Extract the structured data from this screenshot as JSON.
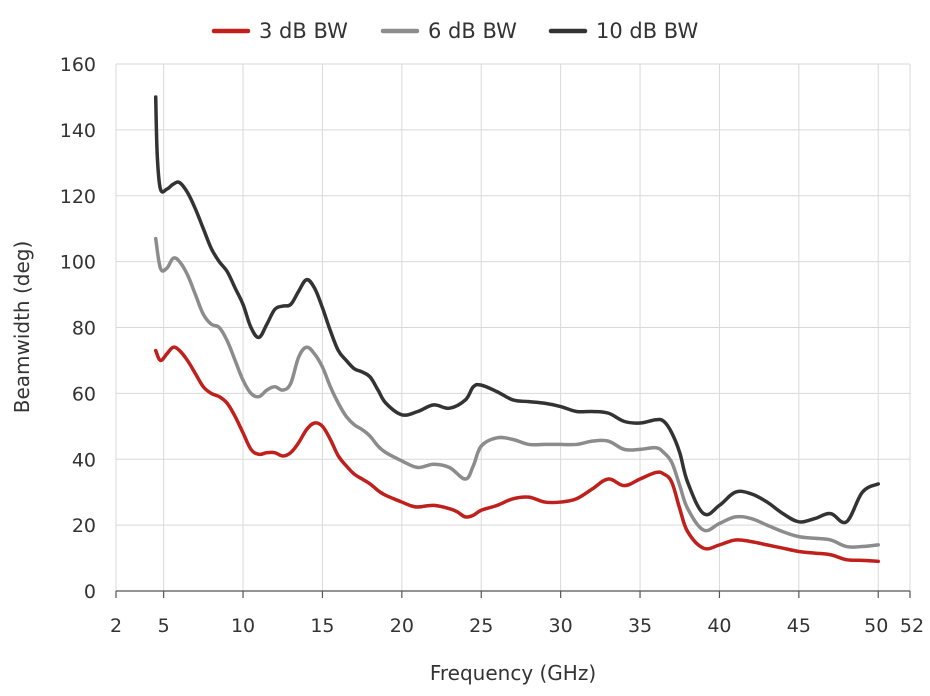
{
  "chart_data": {
    "type": "line",
    "title": "",
    "xlabel": "Frequency (GHz)",
    "ylabel": "Beamwidth (deg)",
    "xlim": [
      2,
      52
    ],
    "ylim": [
      0,
      160
    ],
    "xticks": [
      2,
      5,
      10,
      15,
      20,
      25,
      30,
      35,
      40,
      45,
      50,
      52
    ],
    "yticks": [
      0,
      20,
      40,
      60,
      80,
      100,
      120,
      140,
      160
    ],
    "grid": true,
    "legend_position": "top",
    "series": [
      {
        "name": "3 dB BW",
        "color": "#c0201c",
        "x": [
          4.5,
          4.8,
          5.2,
          5.6,
          6,
          6.5,
          7,
          7.5,
          8,
          8.5,
          9,
          9.5,
          10,
          10.5,
          11,
          11.5,
          12,
          12.5,
          13,
          13.5,
          14,
          14.5,
          15,
          15.5,
          16,
          16.5,
          17,
          17.5,
          18,
          18.5,
          19,
          20,
          20.5,
          21,
          22,
          23,
          23.5,
          24,
          24.5,
          25,
          26,
          27,
          28,
          29,
          30,
          31,
          32,
          33,
          34,
          35,
          36,
          36.5,
          37,
          37.5,
          38,
          39,
          40,
          41,
          42,
          43,
          44,
          45,
          46,
          47,
          48,
          49,
          50
        ],
        "y": [
          73,
          70,
          72,
          74,
          73,
          70,
          66,
          62,
          60,
          59,
          57,
          53,
          48,
          43,
          41.5,
          42,
          42,
          41,
          42,
          45,
          49,
          51,
          50,
          46,
          41,
          38,
          35.5,
          34,
          32.5,
          30.5,
          29,
          27,
          26,
          25.5,
          26,
          25,
          24,
          22.5,
          23,
          24.5,
          26,
          28,
          28.5,
          27,
          27,
          28,
          31,
          34,
          32,
          34,
          36,
          35.5,
          33,
          25,
          18,
          13,
          14,
          15.5,
          15,
          14,
          13,
          12,
          11.5,
          11,
          9.5,
          9.3,
          9
        ]
      },
      {
        "name": "6 dB BW",
        "color": "#8c8c8c",
        "x": [
          4.5,
          4.8,
          5.2,
          5.6,
          6,
          6.5,
          7,
          7.5,
          8,
          8.5,
          9,
          9.5,
          10,
          10.5,
          11,
          11.5,
          12,
          12.5,
          13,
          13.5,
          14,
          14.5,
          15,
          15.5,
          16,
          16.5,
          17,
          17.5,
          18,
          18.5,
          19,
          20,
          21,
          22,
          23,
          24,
          24.5,
          25,
          26,
          27,
          28,
          29,
          30,
          31,
          32,
          33,
          34,
          35,
          36,
          36.5,
          37,
          37.5,
          38,
          39,
          40,
          41,
          42,
          43,
          44,
          45,
          46,
          47,
          48,
          49,
          50
        ],
        "y": [
          107,
          98,
          98,
          101,
          100,
          96,
          90,
          84,
          81,
          80,
          76,
          70,
          64,
          60,
          59,
          61,
          62,
          61,
          63,
          71,
          74,
          72,
          68,
          62,
          57,
          53,
          50.5,
          49,
          47,
          44,
          42,
          39.5,
          37.5,
          38.5,
          37.5,
          34,
          38,
          44,
          46.5,
          46,
          44.5,
          44.5,
          44.5,
          44.5,
          45.5,
          45.5,
          43,
          43,
          43.5,
          42,
          39,
          32,
          25,
          18.5,
          20.5,
          22.5,
          22,
          20,
          18,
          16.5,
          16,
          15.5,
          13.5,
          13.5,
          14
        ]
      },
      {
        "name": "10 dB BW",
        "color": "#333333",
        "x": [
          4.5,
          4.6,
          4.8,
          5.2,
          5.6,
          6,
          6.5,
          7,
          7.5,
          8,
          8.5,
          9,
          9.5,
          10,
          10.5,
          11,
          11.5,
          12,
          12.5,
          13,
          13.5,
          14,
          14.5,
          15,
          15.5,
          16,
          16.5,
          17,
          17.5,
          18,
          18.5,
          19,
          20,
          21,
          22,
          23,
          24,
          24.5,
          25,
          26,
          27,
          28,
          29,
          30,
          31,
          32,
          33,
          34,
          35,
          36,
          36.5,
          37,
          37.5,
          38,
          39,
          40,
          41,
          42,
          43,
          44,
          45,
          46,
          47,
          48,
          49,
          50
        ],
        "y": [
          150,
          132,
          122,
          122,
          123.5,
          124,
          121,
          116,
          110,
          104,
          100,
          97,
          92,
          87,
          80,
          77,
          81,
          85.5,
          86.5,
          87,
          91,
          94.5,
          92,
          86,
          79,
          73,
          70,
          67.5,
          66.5,
          65,
          61,
          57,
          53.5,
          54.5,
          56.5,
          55.5,
          58,
          62,
          62.5,
          60.5,
          58,
          57.5,
          57,
          56,
          54.5,
          54.5,
          54,
          51.5,
          51,
          52,
          51.5,
          48,
          42,
          33,
          23.5,
          26,
          30,
          29.5,
          27,
          23.5,
          21,
          22,
          23.5,
          21,
          30,
          32.5
        ]
      }
    ]
  }
}
